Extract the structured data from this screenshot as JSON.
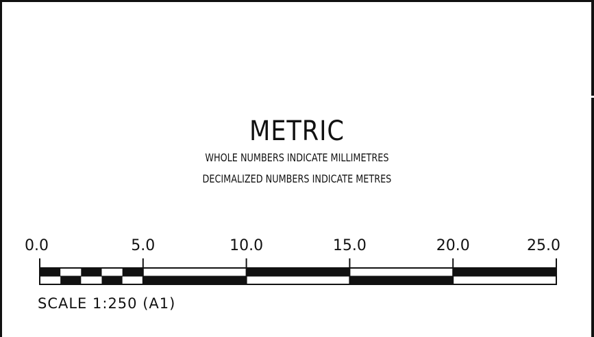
{
  "heading": {
    "title": "METRIC",
    "line1": "WHOLE NUMBERS INDICATE MILLIMETRES",
    "line2": "DECIMALIZED NUMBERS INDICATE METRES"
  },
  "scale_bar": {
    "tick_labels": [
      "0.0",
      "5.0",
      "10.0",
      "15.0",
      "20.0",
      "25.0"
    ],
    "tick_values": [
      0,
      5,
      10,
      15,
      20,
      25
    ],
    "range": [
      0,
      25
    ],
    "fine_division_step": 1,
    "fine_division_range": [
      0,
      5
    ],
    "caption": "SCALE 1:250 (A1)"
  },
  "colors": {
    "ink": "#111111",
    "paper": "#ffffff"
  }
}
